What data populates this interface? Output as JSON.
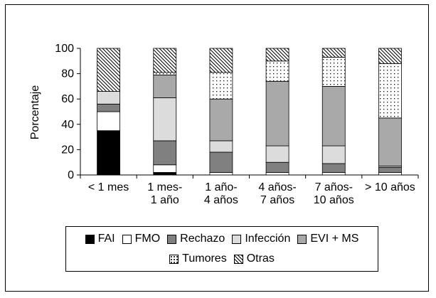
{
  "chart_data": {
    "type": "bar",
    "stacked": true,
    "ylabel": "Porcentaje",
    "xlabel": "",
    "title": "",
    "ylim": [
      0,
      100
    ],
    "yticks": [
      "0",
      "20",
      "40",
      "60",
      "80",
      "100"
    ],
    "categories": [
      [
        "< 1 mes"
      ],
      [
        "1 mes-",
        "1 año"
      ],
      [
        "1 año-",
        "4 años"
      ],
      [
        "4 años-",
        "7 años"
      ],
      [
        "7 años-",
        "10 años"
      ],
      [
        "> 10 años"
      ]
    ],
    "series": [
      {
        "name": "FAI",
        "fill": "#000000",
        "values": [
          35,
          2,
          0,
          0,
          0,
          0
        ]
      },
      {
        "name": "FMO",
        "fill": "#ffffff",
        "values": [
          15,
          6,
          2,
          2,
          2,
          2
        ]
      },
      {
        "name": "Rechazo",
        "fill": "#808080",
        "values": [
          6,
          19,
          16,
          8,
          7,
          4
        ]
      },
      {
        "name": "Infección",
        "fill": "#dcdcdc",
        "values": [
          10,
          34,
          9,
          13,
          14,
          1
        ]
      },
      {
        "name": "EVI + MS",
        "fill": "#a9a9a9",
        "values": [
          0,
          18,
          33,
          51,
          47,
          38
        ]
      },
      {
        "name": "Tumores",
        "fill": "dots",
        "values": [
          0,
          2,
          21,
          16,
          23,
          43
        ]
      },
      {
        "name": "Otras",
        "fill": "hatch",
        "values": [
          34,
          19,
          19,
          10,
          7,
          12
        ]
      }
    ],
    "legend_position": "bottom",
    "grid": false
  }
}
